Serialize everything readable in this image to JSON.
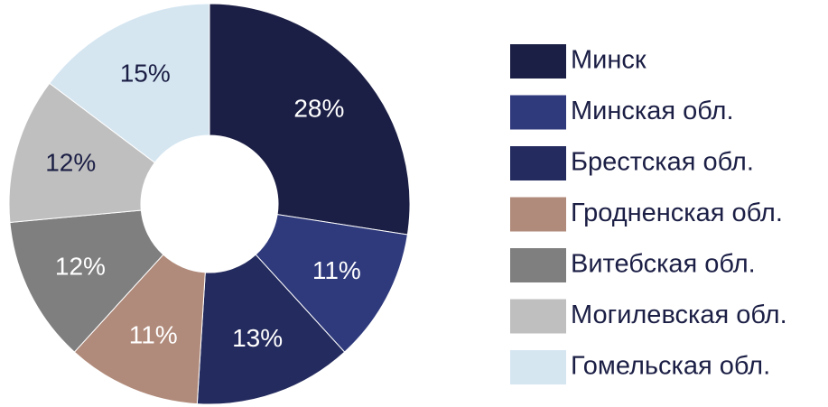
{
  "chart_data": {
    "type": "donut",
    "categories": [
      "Минск",
      "Минская обл.",
      "Брестская обл.",
      "Гродненская обл.",
      "Витебская обл.",
      "Могилевская обл.",
      "Гомельская обл."
    ],
    "values": [
      28,
      11,
      13,
      11,
      12,
      12,
      15
    ],
    "value_labels": [
      "28%",
      "11%",
      "13%",
      "11%",
      "12%",
      "12%",
      "15%"
    ],
    "colors": [
      "#1c1f45",
      "#2f3a7c",
      "#242b5e",
      "#b08a7a",
      "#7f7f7f",
      "#bfbfbf",
      "#d5e6f1"
    ]
  }
}
